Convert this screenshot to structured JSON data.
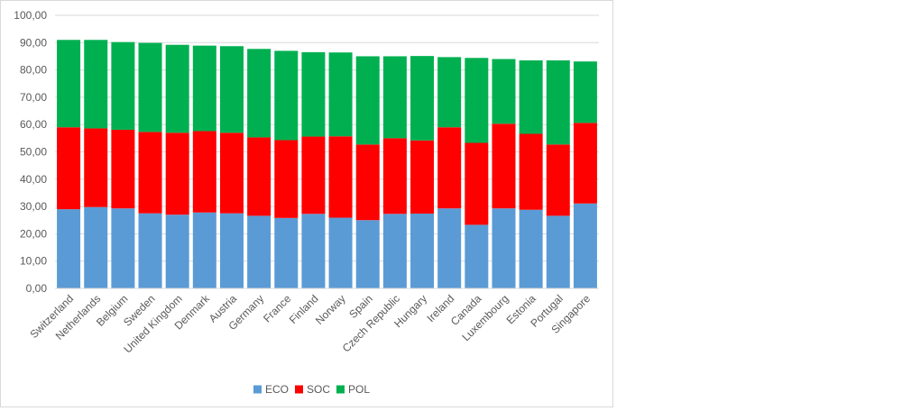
{
  "chart_data": {
    "type": "bar",
    "stacked": true,
    "title": "",
    "xlabel": "",
    "ylabel": "",
    "ylim": [
      0,
      100
    ],
    "y_ticks": [
      "0,00",
      "10,00",
      "20,00",
      "30,00",
      "40,00",
      "50,00",
      "60,00",
      "70,00",
      "80,00",
      "90,00",
      "100,00"
    ],
    "grid": true,
    "legend_position": "bottom",
    "categories": [
      "Switzerland",
      "Netherlands",
      "Belgium",
      "Sweden",
      "United Kingdom",
      "Denmark",
      "Austria",
      "Germany",
      "France",
      "Finland",
      "Norway",
      "Spain",
      "Czech Republic",
      "Hungary",
      "Ireland",
      "Canada",
      "Luxembourg",
      "Estonia",
      "Portugal",
      "Singapore"
    ],
    "series": [
      {
        "name": "ECO",
        "color": "#5b9bd5",
        "values": [
          29.0,
          29.8,
          29.3,
          27.5,
          27.0,
          27.8,
          27.5,
          26.6,
          25.8,
          27.3,
          25.9,
          25.0,
          27.3,
          27.4,
          29.3,
          23.3,
          29.3,
          28.8,
          26.6,
          31.1
        ]
      },
      {
        "name": "SOC",
        "color": "#ff0000",
        "values": [
          30.0,
          28.8,
          28.8,
          29.8,
          30.0,
          29.8,
          29.5,
          28.7,
          28.5,
          28.3,
          29.8,
          27.7,
          27.7,
          26.8,
          29.7,
          30.0,
          31.0,
          27.8,
          26.1,
          29.5
        ]
      },
      {
        "name": "POL",
        "color": "#00b050",
        "values": [
          32.0,
          32.4,
          32.1,
          32.6,
          32.2,
          31.3,
          31.7,
          32.4,
          32.7,
          30.9,
          30.7,
          32.3,
          30.0,
          30.9,
          25.7,
          31.1,
          23.7,
          26.9,
          30.8,
          22.5
        ]
      }
    ]
  }
}
